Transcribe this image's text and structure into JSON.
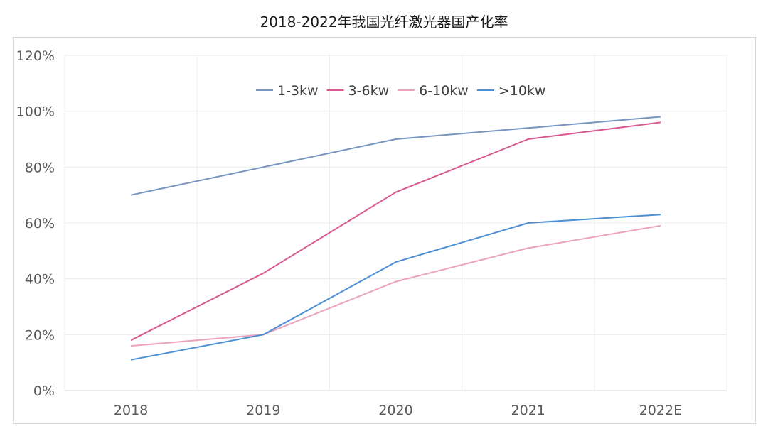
{
  "chart_data": {
    "type": "line",
    "title": "2018-2022年我国光纤激光器国产化率",
    "xlabel": "",
    "ylabel": "",
    "categories": [
      "2018",
      "2019",
      "2020",
      "2021",
      "2022E"
    ],
    "ylim": [
      0,
      120
    ],
    "yticks": [
      0,
      20,
      40,
      60,
      80,
      100,
      120
    ],
    "ytick_labels": [
      "0%",
      "20%",
      "40%",
      "60%",
      "80%",
      "100%",
      "120%"
    ],
    "grid": true,
    "legend_position": "top-center",
    "series": [
      {
        "name": "1-3kw",
        "color": "#7895c0",
        "values": [
          70,
          80,
          90,
          94,
          98
        ]
      },
      {
        "name": "3-6kw",
        "color": "#d8588f",
        "values": [
          18,
          42,
          71,
          90,
          96
        ]
      },
      {
        "name": "6-10kw",
        "color": "#eba3bd",
        "values": [
          16,
          20,
          39,
          51,
          59
        ]
      },
      {
        "name": ">10kw",
        "color": "#4a8fd6",
        "values": [
          11,
          20,
          46,
          60,
          63
        ]
      }
    ]
  }
}
